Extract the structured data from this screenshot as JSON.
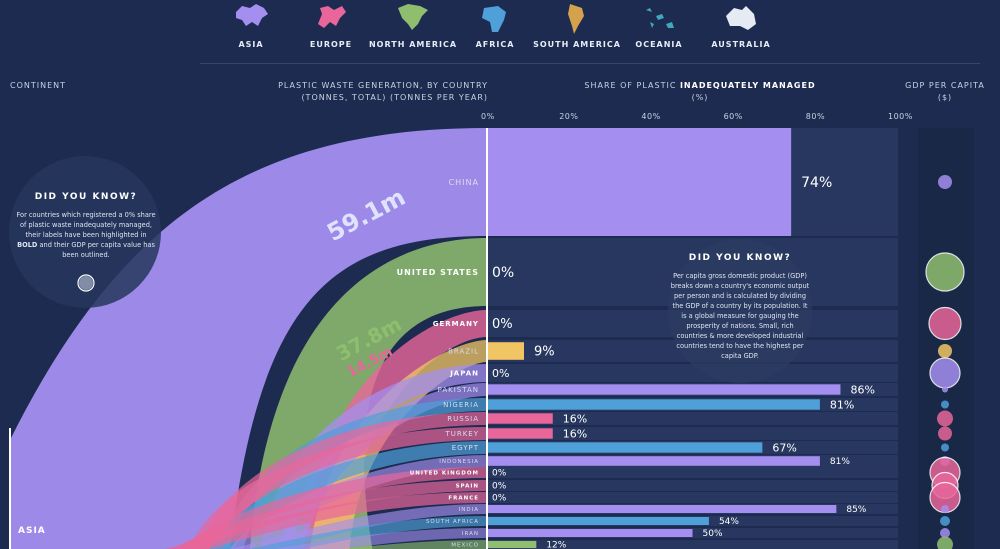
{
  "legend": [
    {
      "name": "ASIA",
      "color": "#a48ff0",
      "shape": "asia"
    },
    {
      "name": "EUROPE",
      "color": "#e8669a",
      "shape": "europe"
    },
    {
      "name": "NORTH AMERICA",
      "color": "#8fbf6e",
      "shape": "namerica"
    },
    {
      "name": "AFRICA",
      "color": "#4f9fd9",
      "shape": "africa"
    },
    {
      "name": "SOUTH AMERICA",
      "color": "#d4a24c",
      "shape": "samerica"
    },
    {
      "name": "OCEANIA",
      "color": "#3fa8bf",
      "shape": "oceania"
    },
    {
      "name": "AUSTRALIA",
      "color": "#e6eaf2",
      "shape": "australia"
    }
  ],
  "headers": {
    "continent": "CONTINENT",
    "waste_line1": "PLASTIC WASTE GENERATION, BY COUNTRY",
    "waste_line2": "(TONNES, TOTAL) (TONNES PER YEAR)",
    "share_prefix": "SHARE OF PLASTIC ",
    "share_bold": "INADEQUATELY MANAGED",
    "share_unit": "(%)",
    "gdp": "GDP PER CAPITA",
    "gdp_unit": "($)"
  },
  "callout_left": {
    "title": "DID YOU KNOW?",
    "text_before": "For countries which registered a 0% share of plastic waste inadequately managed, their labels have been highlighted in ",
    "text_bold": "BOLD",
    "text_after": " and their GDP per capita value has been outlined."
  },
  "callout_right": {
    "title": "DID YOU KNOW?",
    "text": "Per capita gross domestic product (GDP) breaks down a country's economic output per person and is calculated by dividing the GDP of a country by its population. It is a global measure for gauging the prosperity of nations. Small, rich countries & more developed industrial countries tend to have the highest per capita GDP."
  },
  "continent_label": "ASIA",
  "colors": {
    "asia": "#a48ff0",
    "europe": "#e8669a",
    "north_america": "#8fbf6e",
    "africa": "#4f9fd9",
    "south_america": "#f2c564",
    "track": "#2a3a63",
    "background": "#1c2b4f"
  },
  "chart_data": {
    "type": "bar",
    "title": "Share of plastic inadequately managed (%)",
    "xlim": [
      0,
      100
    ],
    "ticks": [
      "0%",
      "20%",
      "40%",
      "60%",
      "80%",
      "100%"
    ],
    "flow_labels": [
      {
        "text": "59.1m",
        "continent": "asia"
      },
      {
        "text": "37.8m",
        "continent": "north_america"
      },
      {
        "text": "14.5m",
        "continent": "europe"
      }
    ],
    "countries": [
      {
        "name": "CHINA",
        "value": 74,
        "label": "74%",
        "continent": "asia",
        "bold": false,
        "gdp_radius": 7
      },
      {
        "name": "UNITED STATES",
        "value": 0,
        "label": "0%",
        "continent": "north_america",
        "bold": true,
        "gdp_radius": 19
      },
      {
        "name": "GERMANY",
        "value": 0,
        "label": "0%",
        "continent": "europe",
        "bold": true,
        "gdp_radius": 16
      },
      {
        "name": "BRAZIL",
        "value": 9,
        "label": "9%",
        "continent": "south_america",
        "bold": false,
        "gdp_radius": 7
      },
      {
        "name": "JAPAN",
        "value": 0,
        "label": "0%",
        "continent": "asia",
        "bold": true,
        "gdp_radius": 15
      },
      {
        "name": "PAKISTAN",
        "value": 86,
        "label": "86%",
        "continent": "asia",
        "bold": false,
        "gdp_radius": 3
      },
      {
        "name": "NIGERIA",
        "value": 81,
        "label": "81%",
        "continent": "africa",
        "bold": false,
        "gdp_radius": 4
      },
      {
        "name": "RUSSIA",
        "value": 16,
        "label": "16%",
        "continent": "europe",
        "bold": false,
        "gdp_radius": 8
      },
      {
        "name": "TURKEY",
        "value": 16,
        "label": "16%",
        "continent": "europe",
        "bold": false,
        "gdp_radius": 7
      },
      {
        "name": "EGYPT",
        "value": 67,
        "label": "67%",
        "continent": "africa",
        "bold": false,
        "gdp_radius": 4
      },
      {
        "name": "INDONESIA",
        "value": 81,
        "label": "81%",
        "continent": "asia",
        "bold": false,
        "gdp_radius": 5
      },
      {
        "name": "UNITED KINGDOM",
        "value": 0,
        "label": "0%",
        "continent": "europe",
        "bold": true,
        "gdp_radius": 15
      },
      {
        "name": "SPAIN",
        "value": 0,
        "label": "0%",
        "continent": "europe",
        "bold": true,
        "gdp_radius": 13
      },
      {
        "name": "FRANCE",
        "value": 0,
        "label": "0%",
        "continent": "europe",
        "bold": true,
        "gdp_radius": 15
      },
      {
        "name": "INDIA",
        "value": 85,
        "label": "85%",
        "continent": "asia",
        "bold": false,
        "gdp_radius": 4
      },
      {
        "name": "SOUTH AFRICA",
        "value": 54,
        "label": "54%",
        "continent": "africa",
        "bold": false,
        "gdp_radius": 5
      },
      {
        "name": "IRAN",
        "value": 50,
        "label": "50%",
        "continent": "asia",
        "bold": false,
        "gdp_radius": 5
      },
      {
        "name": "MEXICO",
        "value": 12,
        "label": "12%",
        "continent": "north_america",
        "bold": false,
        "gdp_radius": 8
      }
    ]
  }
}
